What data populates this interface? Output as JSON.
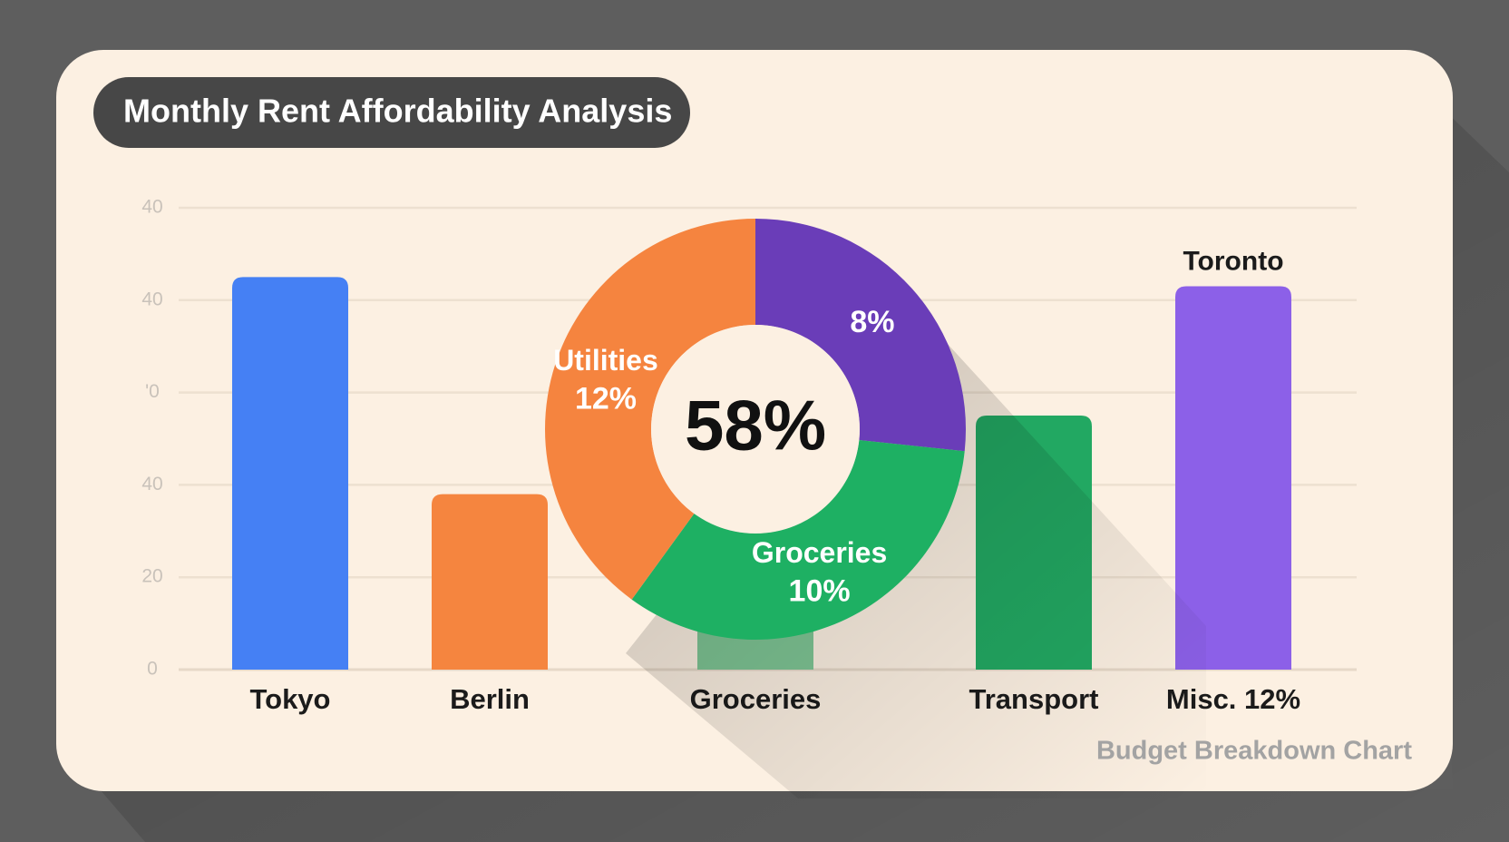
{
  "chart_data": [
    {
      "type": "bar",
      "title": "Monthly Rent Affordability Analysis",
      "categories": [
        "Tokyo",
        "Berlin",
        "Groceries",
        "Transport",
        "Misc. 12%"
      ],
      "values": [
        85,
        38,
        40,
        55,
        83
      ],
      "colors": [
        "#4580f4",
        "#f5853f",
        "#7fc695",
        "#22a862",
        "#8c60e8"
      ],
      "ylim": [
        0,
        100
      ],
      "yticks": [
        0,
        20,
        40,
        {
          "value": 60,
          "label": "'0"
        },
        {
          "value": 80,
          "label": "40"
        },
        {
          "value": 100,
          "label": "40"
        }
      ],
      "grid": true,
      "annotation": "Toronto",
      "footer": "Budget Breakdown Chart"
    },
    {
      "type": "pie",
      "donut": true,
      "categories": [
        null,
        "Groceries",
        "Utilities"
      ],
      "values": [
        8,
        10,
        12
      ],
      "value_labels": [
        "8%",
        "10%",
        "12%"
      ],
      "colors": [
        "#6a3db8",
        "#1eb063",
        "#f5843f"
      ],
      "center_label": "58%"
    }
  ]
}
